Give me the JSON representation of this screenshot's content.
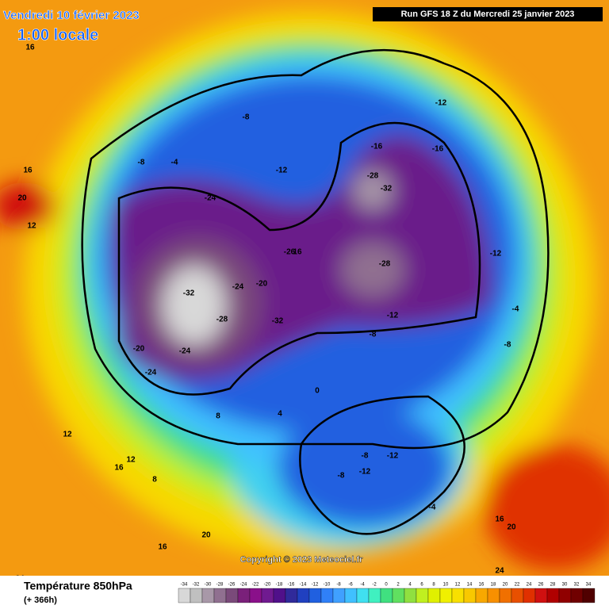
{
  "header": {
    "date": "Vendredi 10 février 2023",
    "time": "1:00 locale",
    "run": "Run GFS 18 Z du Mercredi 25 janvier 2023"
  },
  "copyright": "Copyright © 2023 Meteociel.fr",
  "footer": {
    "title": "Température 850hPa",
    "lead": "(+ 366h)"
  },
  "scale": {
    "values": [
      -34,
      -32,
      -30,
      -28,
      -26,
      -24,
      -22,
      -20,
      -18,
      -16,
      -14,
      -12,
      -10,
      -8,
      -6,
      -4,
      -2,
      0,
      2,
      4,
      6,
      8,
      10,
      12,
      14,
      16,
      18,
      20,
      22,
      24,
      26,
      28,
      30,
      32,
      34
    ],
    "colors": [
      "#d8d8d8",
      "#c0c0c0",
      "#a898a8",
      "#907090",
      "#7a4a7a",
      "#7a207a",
      "#8a108a",
      "#701a90",
      "#50108a",
      "#302a9a",
      "#2040c0",
      "#2060e0",
      "#3080f8",
      "#40a0ff",
      "#40c0ff",
      "#40e0f0",
      "#40f0c0",
      "#40e080",
      "#60e060",
      "#90e040",
      "#c0f020",
      "#e0f000",
      "#f0f000",
      "#f8e000",
      "#f8c800",
      "#f8a800",
      "#f89000",
      "#f07000",
      "#e85000",
      "#e03000",
      "#d01010",
      "#b00000",
      "#900000",
      "#700000",
      "#500000"
    ]
  },
  "map_labels": [
    16,
    20,
    12,
    16,
    -8,
    -4,
    -8,
    -12,
    -16,
    -28,
    -24,
    -32,
    -28,
    -24,
    -32,
    -20,
    -24,
    -26,
    16,
    -12,
    -32,
    -28,
    -24,
    -20,
    -8,
    -12,
    -16,
    -12,
    -8,
    -4,
    0,
    4,
    8,
    12,
    16,
    20,
    24,
    -8,
    -12,
    -12,
    -8,
    -4,
    8,
    12,
    16,
    20,
    16,
    24
  ]
}
